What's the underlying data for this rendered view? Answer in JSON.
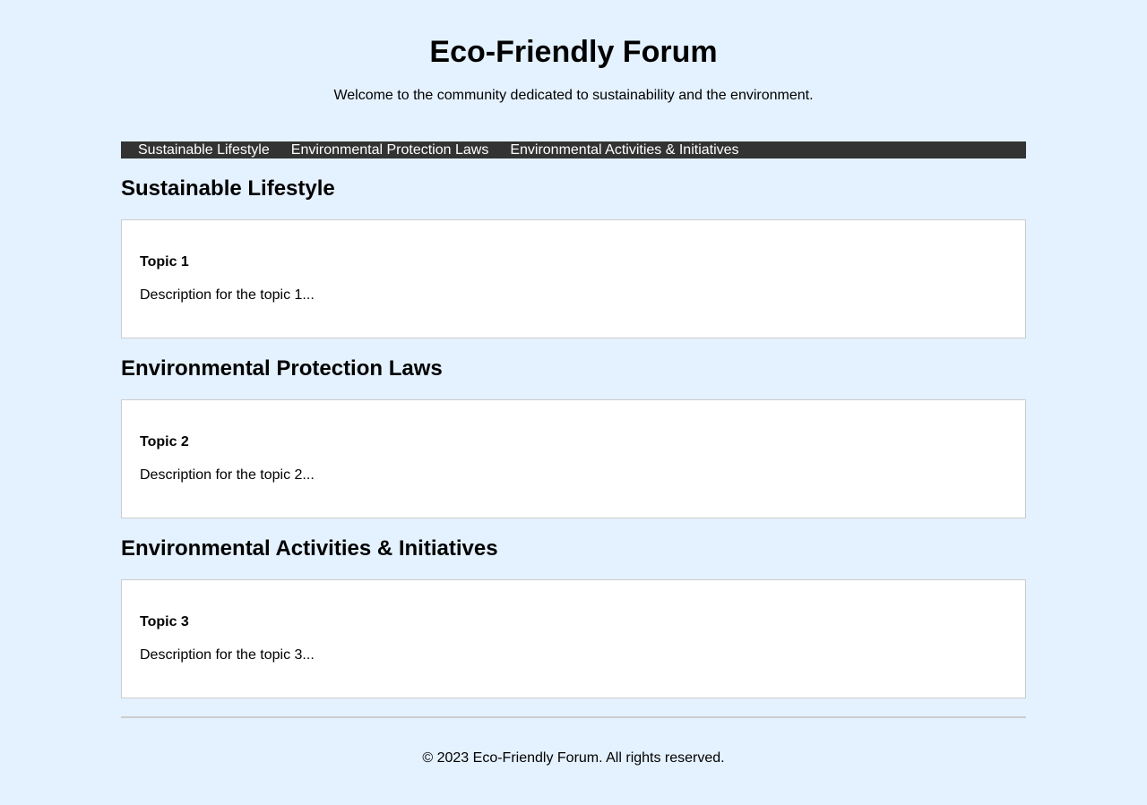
{
  "header": {
    "title": "Eco-Friendly Forum",
    "tagline": "Welcome to the community dedicated to sustainability and the environment."
  },
  "nav": {
    "items": [
      {
        "label": "Sustainable Lifestyle"
      },
      {
        "label": "Environmental Protection Laws"
      },
      {
        "label": "Environmental Activities & Initiatives"
      }
    ]
  },
  "sections": [
    {
      "heading": "Sustainable Lifestyle",
      "topic_title": "Topic 1",
      "topic_desc": "Description for the topic 1..."
    },
    {
      "heading": "Environmental Protection Laws",
      "topic_title": "Topic 2",
      "topic_desc": "Description for the topic 2..."
    },
    {
      "heading": "Environmental Activities & Initiatives",
      "topic_title": "Topic 3",
      "topic_desc": "Description for the topic 3..."
    }
  ],
  "footer": {
    "text": "© 2023 Eco-Friendly Forum. All rights reserved."
  },
  "colors": {
    "background": "#e4f1fe",
    "nav_background": "#333333",
    "card_border": "#cccccc"
  }
}
